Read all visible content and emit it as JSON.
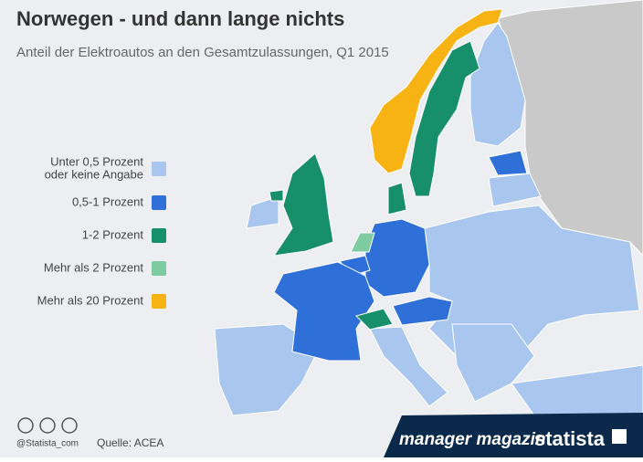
{
  "header": {
    "title": "Norwegen - und dann lange nichts",
    "subtitle": "Anteil der Elektroautos an den Gesamtzulassungen, Q1 2015"
  },
  "legend": [
    {
      "lines": [
        "Unter 0,5 Prozent",
        "oder keine Angabe"
      ],
      "color": "#a9c6ef"
    },
    {
      "lines": [
        "0,5-1 Prozent"
      ],
      "color": "#2f6fd8"
    },
    {
      "lines": [
        "1-2 Prozent"
      ],
      "color": "#178f6a"
    },
    {
      "lines": [
        "Mehr als 2 Prozent"
      ],
      "color": "#7fcba0"
    },
    {
      "lines": [
        "Mehr als 20 Prozent"
      ],
      "color": "#f7b314"
    }
  ],
  "footer": {
    "handle": "@Statista_com",
    "source": "Quelle: ACEA",
    "partner": "manager magazin",
    "brand": "statista"
  }
}
